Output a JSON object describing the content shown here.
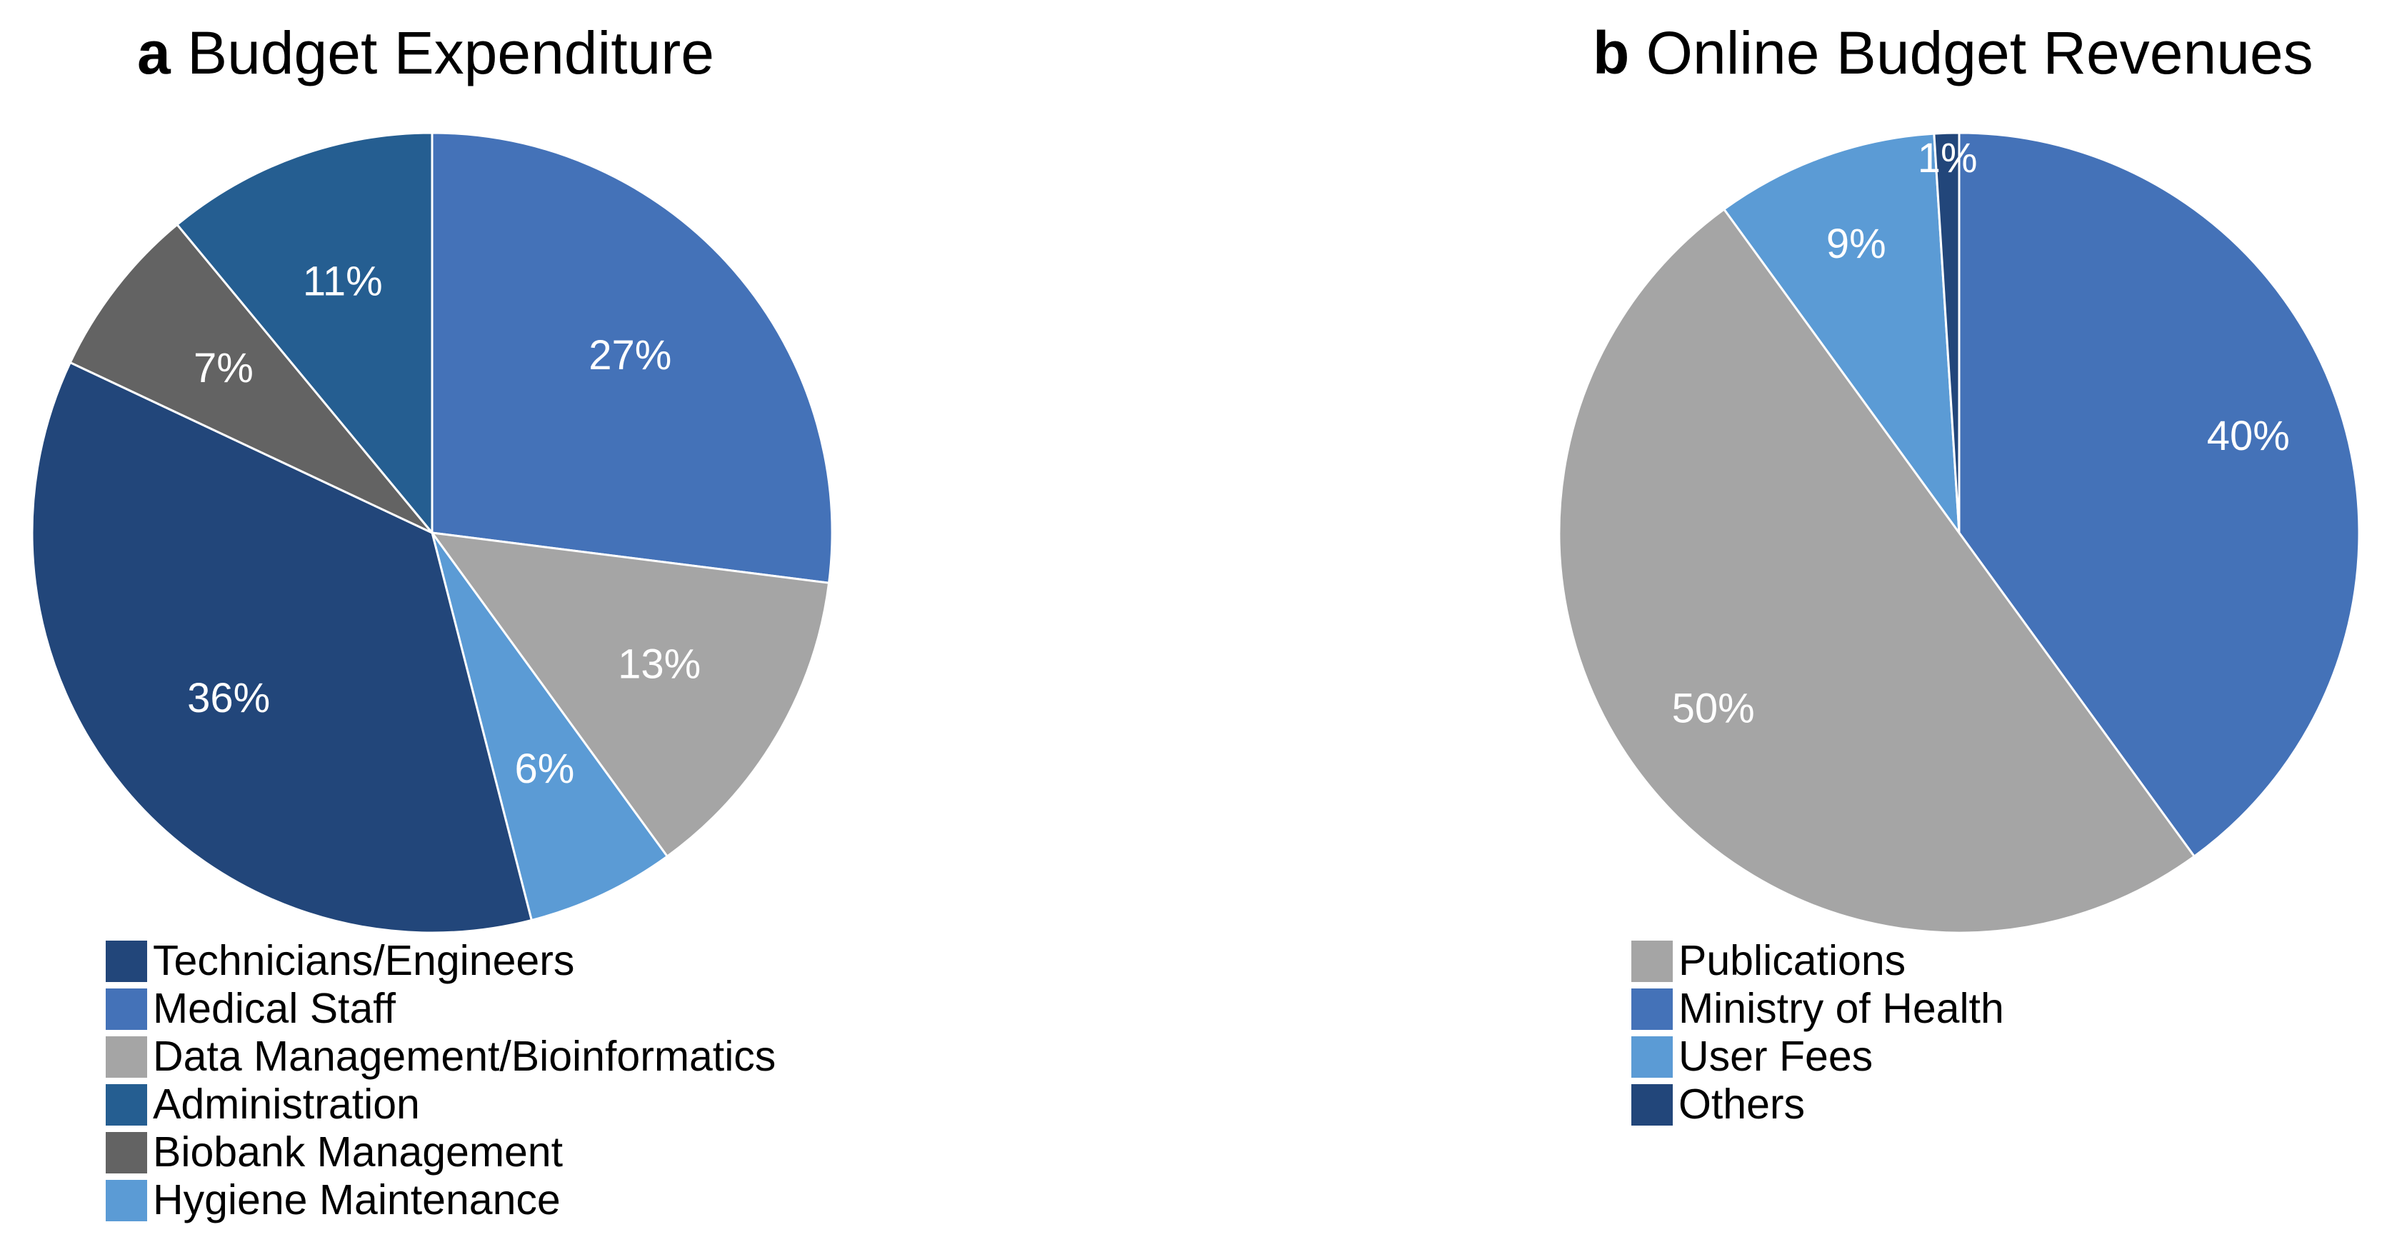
{
  "chart_data": [
    {
      "type": "pie",
      "panel": "a",
      "title": "Budget Expenditure",
      "slices": [
        {
          "label": "Medical Staff",
          "value": 27,
          "display": "27%",
          "color": "#4472B8"
        },
        {
          "label": "Data Management/Bioinformatics",
          "value": 13,
          "display": "13%",
          "color": "#A5A5A5"
        },
        {
          "label": "Hygiene Maintenance",
          "value": 6,
          "display": "6%",
          "color": "#5B9BD5"
        },
        {
          "label": "Technicians/Engineers",
          "value": 36,
          "display": "36%",
          "color": "#22467A"
        },
        {
          "label": "Biobank Management",
          "value": 7,
          "display": "7%",
          "color": "#636363"
        },
        {
          "label": "Administration",
          "value": 11,
          "display": "11%",
          "color": "#255E91"
        }
      ],
      "legend": [
        "Technicians/Engineers",
        "Medical Staff",
        "Data Management/Bioinformatics",
        "Administration",
        "Biobank Management",
        "Hygiene Maintenance"
      ],
      "legend_placement": "bottom-left"
    },
    {
      "type": "pie",
      "panel": "b",
      "title": "Online Budget Revenues",
      "slices": [
        {
          "label": "Ministry of Health",
          "value": 40,
          "display": "40%",
          "color": "#4472B8"
        },
        {
          "label": "Publications",
          "value": 50,
          "display": "50%",
          "color": "#A5A5A5"
        },
        {
          "label": "User Fees",
          "value": 9,
          "display": "9%",
          "color": "#5B9BD5"
        },
        {
          "label": "Others",
          "value": 1,
          "display": "1%",
          "color": "#22467A"
        }
      ],
      "legend": [
        "Publications",
        "Ministry of Health",
        "User Fees",
        "Others"
      ],
      "legend_placement": "bottom-left"
    }
  ]
}
